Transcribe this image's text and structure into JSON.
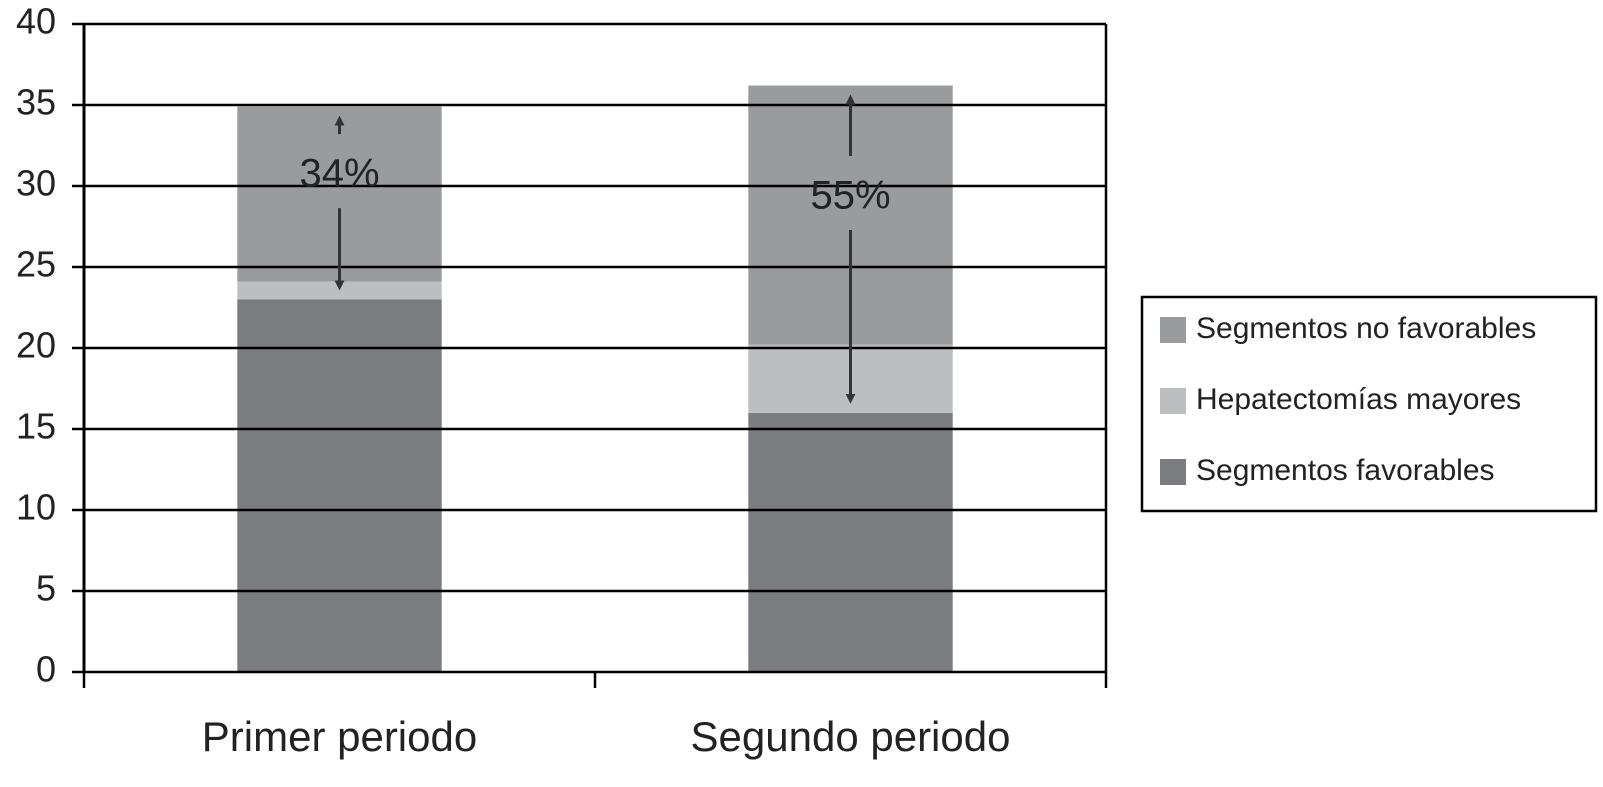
{
  "chart_data": {
    "type": "stacked_bar",
    "categories": [
      "Primer periodo",
      "Segundo periodo"
    ],
    "series": [
      {
        "name": "Segmentos favorables",
        "color": "#7b7c80",
        "values": [
          23,
          16
        ]
      },
      {
        "name": "Hepatectomías mayores",
        "color": "#bdbec0",
        "values": [
          1.1,
          4.2
        ]
      },
      {
        "name": "Segmentos no favorables",
        "color": "#9a9b9d",
        "values": [
          10.8,
          16
        ]
      }
    ],
    "annotations": [
      "34%",
      "55%"
    ],
    "ylim": [
      0,
      40
    ],
    "yticks": [
      0,
      5,
      10,
      15,
      20,
      25,
      30,
      35,
      40
    ],
    "grid": true,
    "legend": "right"
  }
}
